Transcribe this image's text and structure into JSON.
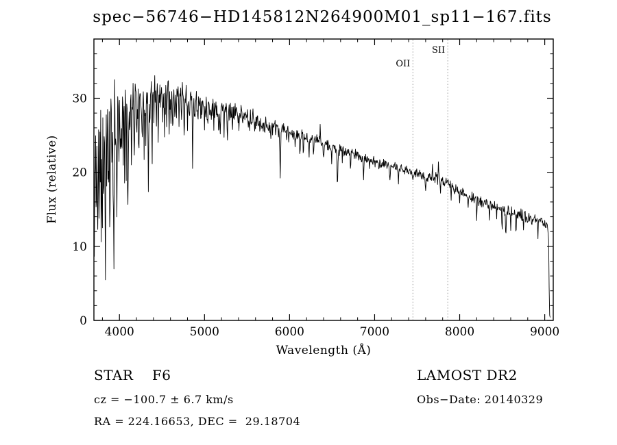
{
  "title": "spec−56746−HD145812N264900M01_sp11−167.fits",
  "chart_data": {
    "type": "line",
    "title": "spec−56746−HD145812N264900M01_sp11−167.fits",
    "xlabel": "Wavelength (Å)",
    "ylabel": "Flux (relative)",
    "xlim": [
      3700,
      9100
    ],
    "ylim": [
      0,
      38
    ],
    "xticks": [
      4000,
      5000,
      6000,
      7000,
      8000,
      9000
    ],
    "x_minor_step": 200,
    "yticks": [
      0,
      10,
      20,
      30
    ],
    "y_minor_step": 2,
    "grid": false,
    "legend": "none",
    "line_color": "#000000",
    "marker_line_color": "#999999",
    "seed": 11,
    "step": 5,
    "continuum": [
      [
        3700,
        26.5
      ],
      [
        3760,
        27.5
      ],
      [
        3840,
        28.2
      ],
      [
        3920,
        28.8
      ],
      [
        4000,
        29.0
      ],
      [
        4120,
        29.6
      ],
      [
        4260,
        30.3
      ],
      [
        4420,
        30.9
      ],
      [
        4560,
        31.0
      ],
      [
        4700,
        30.6
      ],
      [
        4840,
        29.9
      ],
      [
        5000,
        29.2
      ],
      [
        5160,
        28.7
      ],
      [
        5320,
        28.2
      ],
      [
        5480,
        27.6
      ],
      [
        5640,
        26.8
      ],
      [
        5800,
        26.1
      ],
      [
        5960,
        25.4
      ],
      [
        6120,
        24.9
      ],
      [
        6280,
        24.4
      ],
      [
        6440,
        23.7
      ],
      [
        6600,
        23.0
      ],
      [
        6760,
        22.4
      ],
      [
        6920,
        21.8
      ],
      [
        7080,
        21.2
      ],
      [
        7240,
        20.6
      ],
      [
        7400,
        20.1
      ],
      [
        7560,
        19.6
      ],
      [
        7720,
        19.2
      ],
      [
        7840,
        18.7
      ],
      [
        7960,
        17.6
      ],
      [
        8100,
        16.8
      ],
      [
        8240,
        16.1
      ],
      [
        8380,
        15.4
      ],
      [
        8520,
        14.9
      ],
      [
        8660,
        14.4
      ],
      [
        8800,
        13.9
      ],
      [
        8920,
        13.4
      ],
      [
        9030,
        13.0
      ]
    ],
    "noise_amplitude": [
      [
        3700,
        6.5
      ],
      [
        3800,
        6.0
      ],
      [
        3900,
        5.5
      ],
      [
        4000,
        4.8
      ],
      [
        4150,
        4.0
      ],
      [
        4300,
        3.3
      ],
      [
        4450,
        2.8
      ],
      [
        4600,
        2.5
      ],
      [
        4800,
        2.3
      ],
      [
        5000,
        2.0
      ],
      [
        5300,
        1.7
      ],
      [
        5600,
        1.5
      ],
      [
        5900,
        1.3
      ],
      [
        6200,
        1.1
      ],
      [
        6500,
        0.95
      ],
      [
        6800,
        0.85
      ],
      [
        7100,
        0.8
      ],
      [
        7400,
        0.8
      ],
      [
        7700,
        0.95
      ],
      [
        8000,
        0.8
      ],
      [
        8300,
        0.85
      ],
      [
        8600,
        0.95
      ],
      [
        9000,
        1.05
      ]
    ],
    "blue_boost": [
      [
        3700,
        2.1
      ],
      [
        4100,
        1.9
      ],
      [
        4500,
        1.4
      ],
      [
        4900,
        1.15
      ],
      [
        5300,
        1.0
      ],
      [
        9100,
        1.0
      ]
    ],
    "absorption_features": [
      [
        3706,
        20,
        5
      ],
      [
        3727,
        16,
        5
      ],
      [
        3745,
        12,
        5
      ],
      [
        3762,
        18,
        5
      ],
      [
        3785,
        10,
        5
      ],
      [
        3798,
        17,
        6
      ],
      [
        3815,
        9,
        5
      ],
      [
        3835,
        19,
        6
      ],
      [
        3850,
        8,
        4
      ],
      [
        3868,
        11,
        5
      ],
      [
        3889,
        16,
        6
      ],
      [
        3912,
        7,
        4
      ],
      [
        3933,
        20,
        6
      ],
      [
        3952,
        8,
        4
      ],
      [
        3968,
        15,
        6
      ],
      [
        3990,
        7,
        4
      ],
      [
        4010,
        6,
        4
      ],
      [
        4026,
        7,
        5
      ],
      [
        4045,
        5,
        4
      ],
      [
        4063,
        6,
        4
      ],
      [
        4077,
        7,
        4
      ],
      [
        4101,
        12,
        6
      ],
      [
        4120,
        5,
        4
      ],
      [
        4144,
        6,
        4
      ],
      [
        4172,
        5,
        4
      ],
      [
        4200,
        4,
        4
      ],
      [
        4226,
        8,
        5
      ],
      [
        4250,
        4,
        4
      ],
      [
        4271,
        6,
        4
      ],
      [
        4290,
        5,
        4
      ],
      [
        4310,
        7,
        5
      ],
      [
        4340,
        10,
        6
      ],
      [
        4360,
        4,
        4
      ],
      [
        4383,
        7,
        5
      ],
      [
        4405,
        5,
        4
      ],
      [
        4435,
        4,
        4
      ],
      [
        4457,
        5,
        4
      ],
      [
        4481,
        4,
        4
      ],
      [
        4508,
        4,
        4
      ],
      [
        4530,
        5,
        4
      ],
      [
        4554,
        4,
        4
      ],
      [
        4583,
        4,
        4
      ],
      [
        4605,
        3.5,
        4
      ],
      [
        4629,
        4,
        4
      ],
      [
        4655,
        3,
        4
      ],
      [
        4668,
        4,
        4
      ],
      [
        4700,
        3.5,
        4
      ],
      [
        4730,
        3,
        4
      ],
      [
        4762,
        3.5,
        4
      ],
      [
        4800,
        3,
        4
      ],
      [
        4861,
        8,
        6
      ],
      [
        4890,
        3,
        4
      ],
      [
        4920,
        3.5,
        4
      ],
      [
        4957,
        3,
        4
      ],
      [
        5000,
        2.5,
        4
      ],
      [
        5041,
        2.5,
        4
      ],
      [
        5080,
        2.5,
        4
      ],
      [
        5110,
        2.5,
        4
      ],
      [
        5167,
        4,
        5
      ],
      [
        5185,
        3.5,
        4
      ],
      [
        5230,
        2.5,
        4
      ],
      [
        5270,
        3.5,
        5
      ],
      [
        5328,
        2.5,
        4
      ],
      [
        5406,
        2.5,
        4
      ],
      [
        5447,
        2,
        4
      ],
      [
        5528,
        2.5,
        4
      ],
      [
        5590,
        2,
        4
      ],
      [
        5711,
        2,
        4
      ],
      [
        5780,
        2,
        4
      ],
      [
        5890,
        7,
        6
      ],
      [
        5990,
        2,
        4
      ],
      [
        6065,
        2,
        4
      ],
      [
        6122,
        2.5,
        4
      ],
      [
        6162,
        2.5,
        4
      ],
      [
        6230,
        2,
        4
      ],
      [
        6280,
        2,
        4
      ],
      [
        6360,
        -2.2,
        4
      ],
      [
        6400,
        2,
        4
      ],
      [
        6495,
        2.5,
        4
      ],
      [
        6563,
        5.5,
        6
      ],
      [
        6620,
        2,
        4
      ],
      [
        6717,
        2,
        4
      ],
      [
        6870,
        3,
        6
      ],
      [
        6940,
        1.5,
        4
      ],
      [
        7050,
        1.5,
        4
      ],
      [
        7180,
        1.8,
        5
      ],
      [
        7280,
        1.5,
        4
      ],
      [
        7450,
        1.5,
        4
      ],
      [
        7600,
        2.2,
        6
      ],
      [
        7680,
        -1.6,
        5
      ],
      [
        7750,
        -2.0,
        5
      ],
      [
        7772,
        2,
        4
      ],
      [
        7900,
        1.8,
        4
      ],
      [
        8000,
        1.5,
        4
      ],
      [
        8100,
        1.6,
        4
      ],
      [
        8200,
        2.2,
        5
      ],
      [
        8350,
        1.8,
        4
      ],
      [
        8434,
        2,
        4
      ],
      [
        8498,
        2.6,
        5
      ],
      [
        8542,
        3.0,
        5
      ],
      [
        8600,
        1.8,
        4
      ],
      [
        8662,
        3.0,
        5
      ],
      [
        8750,
        1.8,
        4
      ],
      [
        8850,
        1.6,
        4
      ],
      [
        8920,
        1.8,
        4
      ]
    ],
    "edge_tail": [
      [
        9036,
        12.2
      ],
      [
        9046,
        10.8
      ],
      [
        9052,
        4.5
      ],
      [
        9058,
        0.7
      ],
      [
        9064,
        0.4
      ]
    ],
    "spectral_lines": [
      {
        "label": "OII",
        "wavelength": 7450
      },
      {
        "label": "SII",
        "wavelength": 7860
      }
    ]
  },
  "annotations": {
    "class_label": "STAR    F6",
    "survey": "LAMOST DR2",
    "cz": "cz = −100.7 ± 6.7 km/s",
    "obs_date": "Obs−Date: 20140329",
    "radec": "RA = 224.16653, DEC =  29.18704"
  }
}
